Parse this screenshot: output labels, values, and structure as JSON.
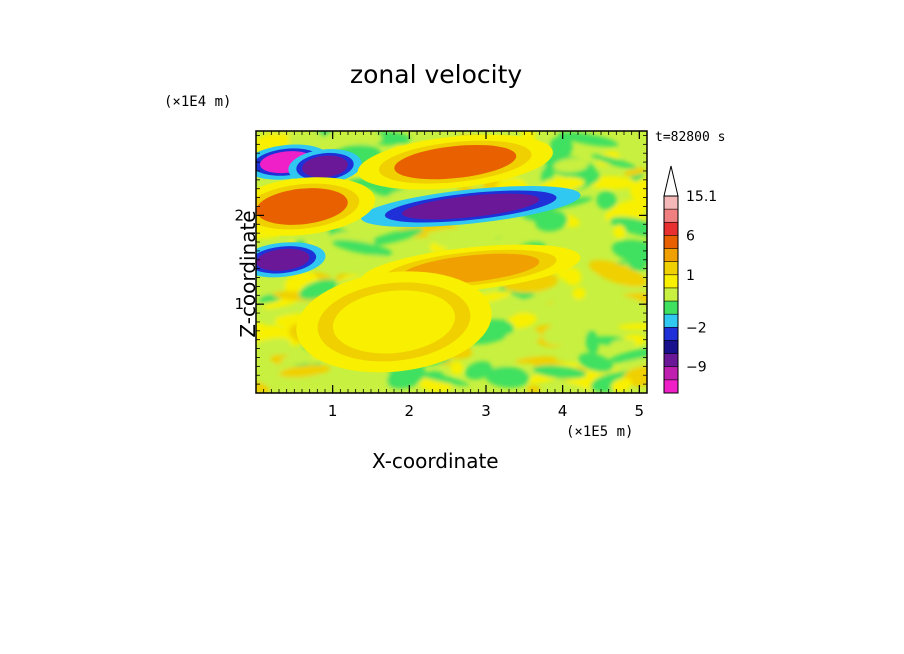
{
  "chart_data": {
    "type": "heatmap",
    "title": "zonal velocity",
    "xlabel": "X-coordinate",
    "ylabel": "Z-coordinate",
    "x_unit": "(×1E5 m)",
    "y_unit": "(×1E4 m)",
    "time_label": "t=82800 s",
    "xlim": [
      0,
      5.1
    ],
    "ylim": [
      0,
      2.95
    ],
    "x_ticks": [
      "1",
      "2",
      "3",
      "4",
      "5"
    ],
    "y_ticks": [
      "1",
      "2"
    ],
    "colorbar": {
      "labels": [
        "15.1",
        "6",
        "1",
        "−2",
        "−9"
      ],
      "label_values": [
        15.1,
        6,
        1,
        -2,
        -9
      ],
      "levels_top_to_bottom": [
        15.1,
        12,
        9,
        6,
        3,
        1.5,
        1,
        0.5,
        -0.5,
        -1,
        -2,
        -4.5,
        -7,
        -9,
        -11.5
      ],
      "colors_top_to_bottom": [
        "#f5b8b8",
        "#f08080",
        "#e83030",
        "#e86000",
        "#f0a000",
        "#f0d000",
        "#f8f000",
        "#c8f040",
        "#40e060",
        "#30c8f0",
        "#1f30d8",
        "#18108c",
        "#6a1898",
        "#c020b0",
        "#f020c8"
      ]
    },
    "features": [
      {
        "x": 0.4,
        "y": 2.6,
        "value": -11,
        "rx": 0.35,
        "ry": 0.12
      },
      {
        "x": 0.9,
        "y": 2.55,
        "value": -7,
        "rx": 0.3,
        "ry": 0.12
      },
      {
        "x": 2.8,
        "y": 2.1,
        "value": -7,
        "rx": 0.9,
        "ry": 0.12
      },
      {
        "x": 0.35,
        "y": 1.5,
        "value": -7,
        "rx": 0.35,
        "ry": 0.12
      },
      {
        "x": 2.6,
        "y": 2.6,
        "value": 6,
        "rx": 0.8,
        "ry": 0.18
      },
      {
        "x": 0.6,
        "y": 2.1,
        "value": 6,
        "rx": 0.6,
        "ry": 0.2
      },
      {
        "x": 2.8,
        "y": 1.4,
        "value": 3,
        "rx": 0.9,
        "ry": 0.15
      },
      {
        "x": 1.8,
        "y": 0.8,
        "value": 1,
        "rx": 0.8,
        "ry": 0.35
      }
    ]
  }
}
